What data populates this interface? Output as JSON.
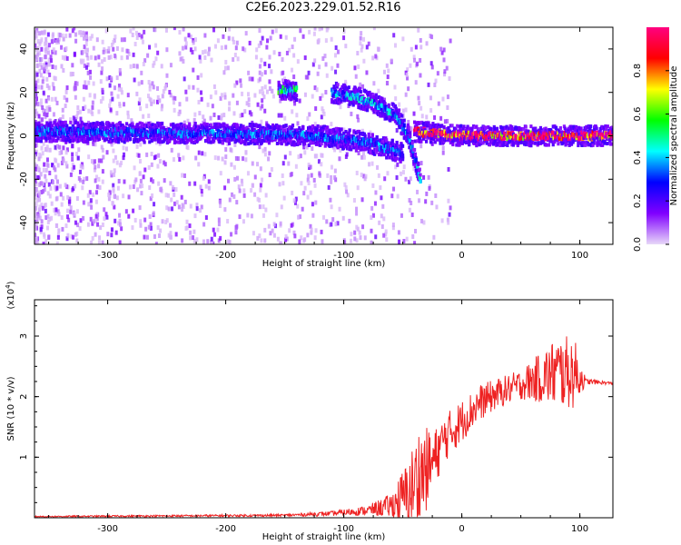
{
  "figure": {
    "title": "C2E6.2023.229.01.52.R16"
  },
  "chart_data": [
    {
      "type": "heatmap",
      "title": "C2E6.2023.229.01.52.R16",
      "xlabel": "Height of straight line (km)",
      "ylabel": "Frequency (Hz)",
      "xlim": [
        -362,
        128
      ],
      "ylim": [
        -50,
        50
      ],
      "xticks": [
        -300,
        -200,
        -100,
        0,
        100
      ],
      "yticks": [
        -40,
        -20,
        0,
        20,
        40
      ],
      "xtick_labels": [
        "-300",
        "-200",
        "-100",
        "0",
        "100"
      ],
      "ytick_labels": [
        "-40",
        "-20",
        "0",
        "20",
        "40"
      ],
      "colorbar": {
        "label": "Normalized spectral amplitude",
        "range": [
          0,
          1
        ],
        "ticks": [
          0.0,
          0.2,
          0.4,
          0.6,
          0.8
        ],
        "tick_labels": [
          "0.0",
          "0.2",
          "0.4",
          "0.6",
          "0.8"
        ],
        "colormap": [
          "#e8d8f8",
          "#8000ff",
          "#0000ff",
          "#00ffff",
          "#00ff00",
          "#ffff00",
          "#ff0000",
          "#ff0080"
        ]
      },
      "features": [
        {
          "x": [
            -362,
            -200,
            -120,
            -80,
            -50
          ],
          "y": [
            2,
            1,
            0,
            -3,
            -8
          ],
          "amplitude": 0.3
        },
        {
          "x": [
            -110,
            -90,
            -70,
            -55,
            -45,
            -35
          ],
          "y": [
            20,
            18,
            14,
            9,
            0,
            -20
          ],
          "amplitude": 0.35
        },
        {
          "x": [
            -155,
            -140
          ],
          "y": [
            21,
            21
          ],
          "amplitude": 0.45
        },
        {
          "x": [
            -40,
            0,
            60,
            128
          ],
          "y": [
            2,
            0,
            0,
            0
          ],
          "amplitude": 0.9
        }
      ]
    },
    {
      "type": "line",
      "xlabel": "Height of straight line (km)",
      "ylabel": "SNR (10 * v/v)",
      "y_multiplier": "(x10",
      "y_multiplier_exp": "4",
      "y_multiplier_close": ")",
      "xlim": [
        -362,
        128
      ],
      "ylim": [
        0,
        3.6
      ],
      "xticks": [
        -300,
        -200,
        -100,
        0,
        100
      ],
      "yticks": [
        1,
        2,
        3
      ],
      "xtick_labels": [
        "-300",
        "-200",
        "-100",
        "0",
        "100"
      ],
      "ytick_labels": [
        "1",
        "2",
        "3"
      ],
      "series": [
        {
          "color": "#ee2222",
          "x": [
            -362,
            -150,
            -110,
            -80,
            -60,
            -45,
            -35,
            -25,
            -15,
            0,
            15,
            30,
            50,
            65,
            80,
            95,
            105,
            128
          ],
          "y": [
            0.02,
            0.04,
            0.07,
            0.12,
            0.2,
            0.4,
            0.7,
            0.9,
            1.3,
            1.6,
            1.9,
            2.05,
            2.2,
            2.3,
            2.4,
            2.4,
            2.25,
            2.22
          ],
          "noise": [
            0.01,
            0.02,
            0.04,
            0.08,
            0.2,
            0.6,
            0.9,
            0.5,
            0.4,
            0.35,
            0.3,
            0.25,
            0.25,
            0.4,
            0.6,
            0.6,
            0.05,
            0.02
          ]
        }
      ]
    }
  ]
}
